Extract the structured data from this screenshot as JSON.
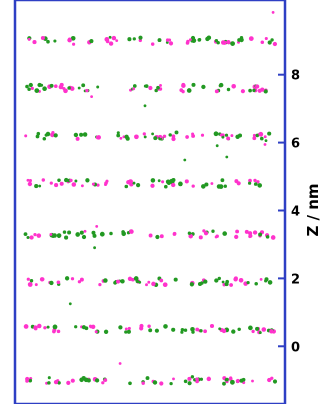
{
  "chart_data": {
    "type": "scatter",
    "ylabel": "Z / nm",
    "ylim": [
      -1.7,
      10.2
    ],
    "y_ticks": [
      0,
      2,
      4,
      6,
      8
    ],
    "y_tick_labels": [
      "0",
      "2",
      "4",
      "6",
      "8"
    ],
    "x_ticks_shown": false,
    "axis_color": "#2e3fc4",
    "layer_z_nm": [
      -1.0,
      0.5,
      1.9,
      3.3,
      4.8,
      6.2,
      7.6,
      9.0
    ],
    "series": [
      {
        "color": "#ff33cc",
        "marker": "circle"
      },
      {
        "color": "#229922",
        "marker": "circle"
      }
    ]
  }
}
